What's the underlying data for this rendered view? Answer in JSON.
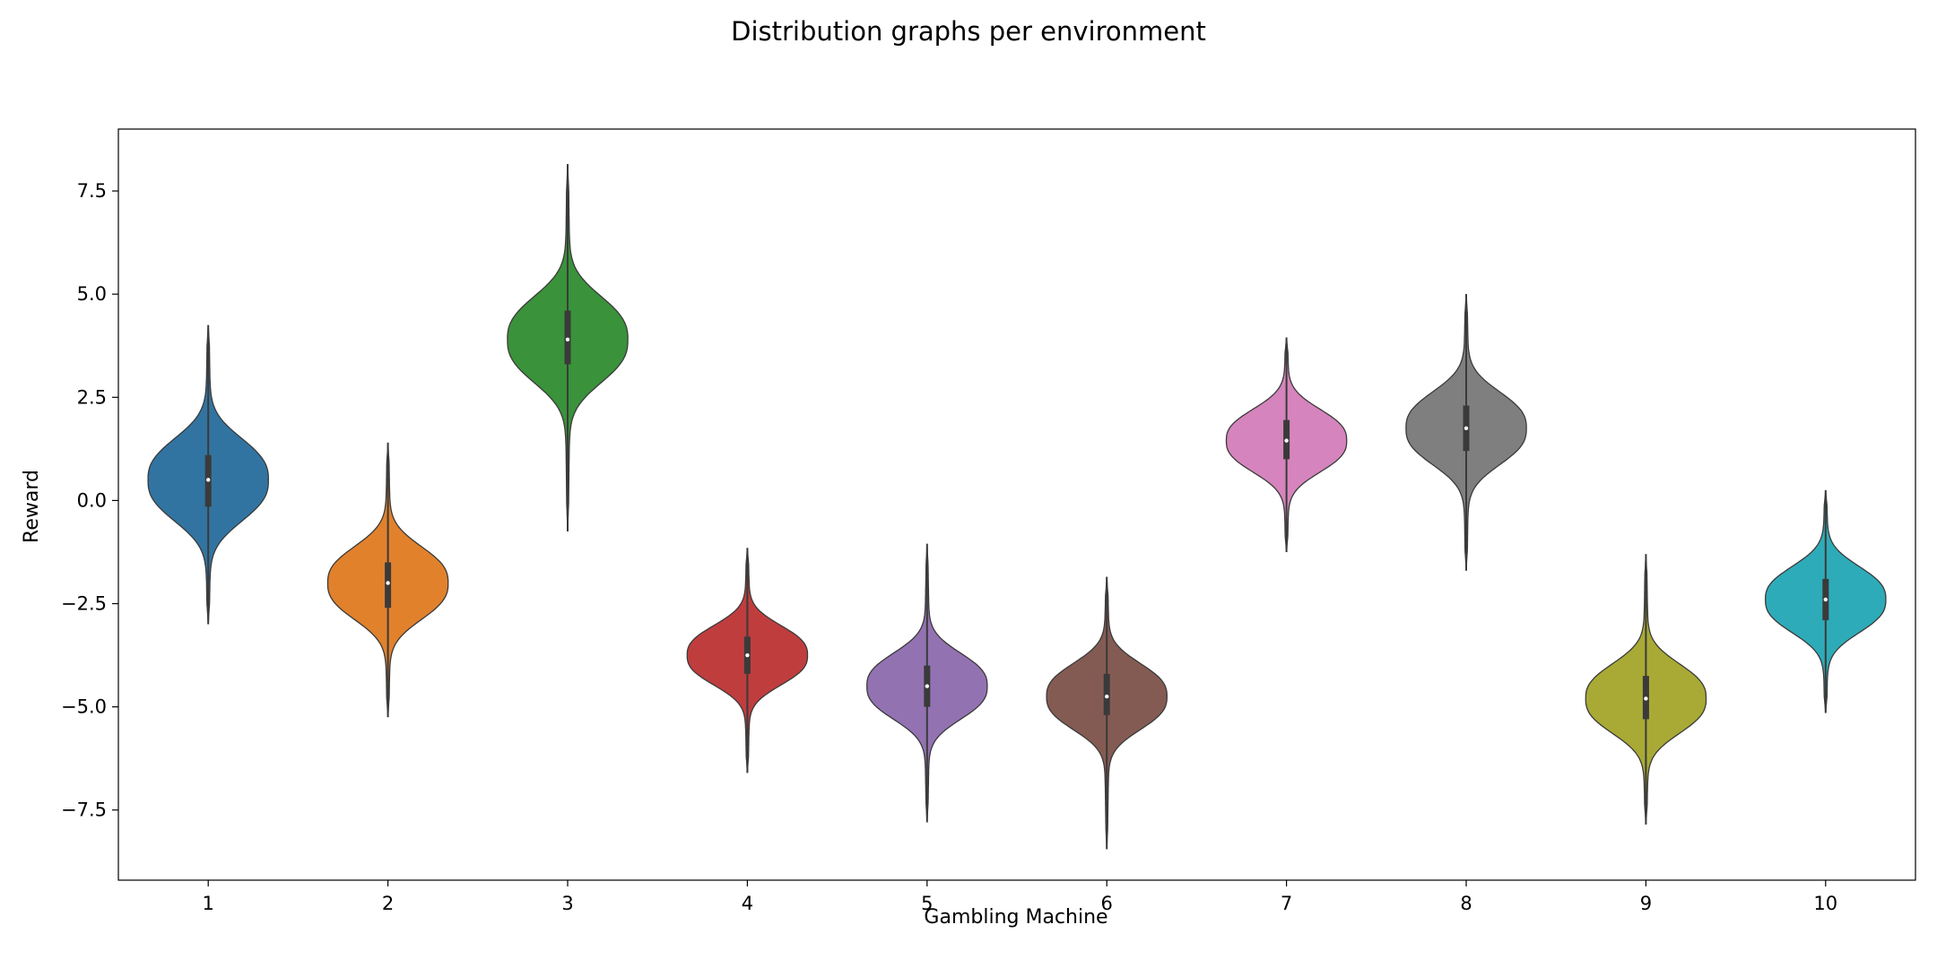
{
  "chart_data": {
    "type": "violin",
    "title": "Distribution graphs per environment",
    "xlabel": "Gambling Machine",
    "ylabel": "Reward",
    "categories": [
      "1",
      "2",
      "3",
      "4",
      "5",
      "6",
      "7",
      "8",
      "9",
      "10"
    ],
    "yticks": [
      7.5,
      5.0,
      2.5,
      0.0,
      -2.5,
      -5.0,
      -7.5
    ],
    "ytick_labels": [
      "7.5",
      "5.0",
      "2.5",
      "0.0",
      "−2.5",
      "−5.0",
      "−7.5"
    ],
    "ylim": [
      -9.2,
      9.0
    ],
    "grid": false,
    "series": [
      {
        "category": "1",
        "color": "#3274a1",
        "min": -3.0,
        "max": 4.25,
        "q1": -0.15,
        "median": 0.5,
        "q3": 1.1
      },
      {
        "category": "2",
        "color": "#e1812c",
        "min": -5.25,
        "max": 1.4,
        "q1": -2.6,
        "median": -2.0,
        "q3": -1.5
      },
      {
        "category": "3",
        "color": "#3a923a",
        "min": -0.75,
        "max": 8.15,
        "q1": 3.3,
        "median": 3.9,
        "q3": 4.6
      },
      {
        "category": "4",
        "color": "#c03d3e",
        "min": -6.6,
        "max": -1.15,
        "q1": -4.2,
        "median": -3.75,
        "q3": -3.3
      },
      {
        "category": "5",
        "color": "#9372b2",
        "min": -7.8,
        "max": -1.05,
        "q1": -5.0,
        "median": -4.5,
        "q3": -4.0
      },
      {
        "category": "6",
        "color": "#845b53",
        "min": -8.45,
        "max": -1.85,
        "q1": -5.2,
        "median": -4.75,
        "q3": -4.2
      },
      {
        "category": "7",
        "color": "#d684bd",
        "min": -1.25,
        "max": 3.95,
        "q1": 1.0,
        "median": 1.45,
        "q3": 1.95
      },
      {
        "category": "8",
        "color": "#7f7f7f",
        "min": -1.7,
        "max": 5.0,
        "q1": 1.2,
        "median": 1.75,
        "q3": 2.3
      },
      {
        "category": "9",
        "color": "#a9aa35",
        "min": -7.85,
        "max": -1.3,
        "q1": -5.3,
        "median": -4.8,
        "q3": -4.25
      },
      {
        "category": "10",
        "color": "#2eabb8",
        "min": -5.15,
        "max": 0.25,
        "q1": -2.9,
        "median": -2.4,
        "q3": -1.9
      }
    ]
  }
}
